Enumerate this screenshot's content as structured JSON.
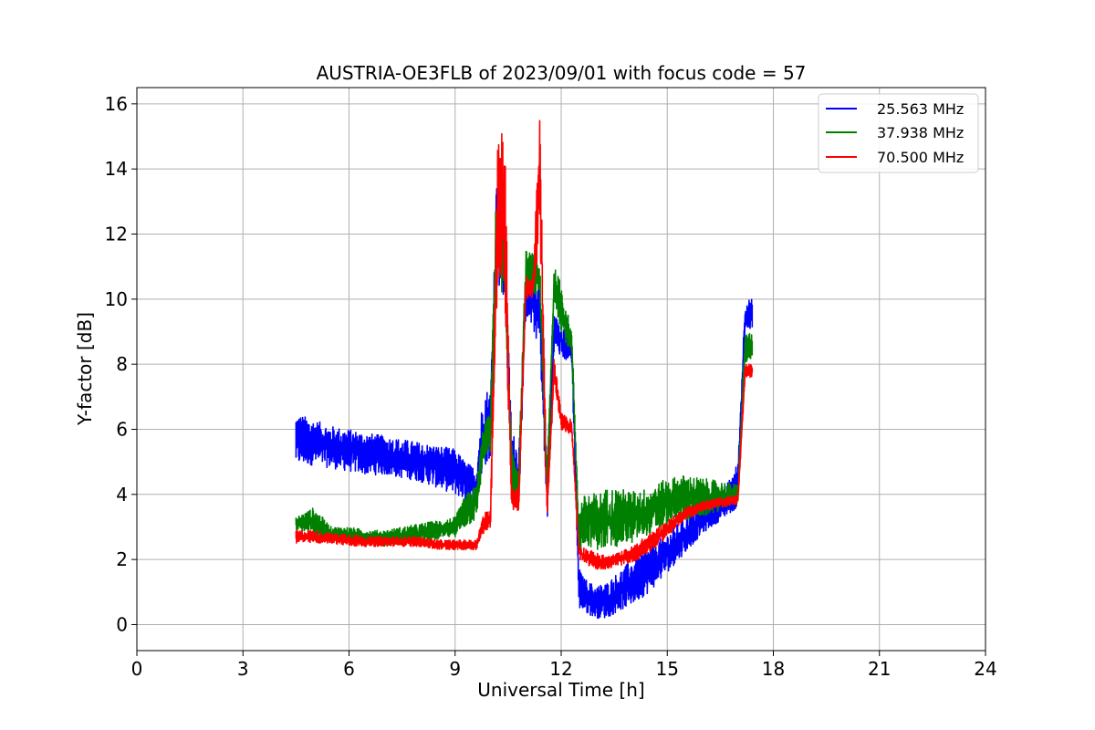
{
  "chart_data": {
    "type": "line",
    "title": "AUSTRIA-OE3FLB of 2023/09/01 with focus code = 57",
    "xlabel": "Universal Time [h]",
    "ylabel": "Y-factor [dB]",
    "xlim": [
      0,
      24
    ],
    "ylim": [
      -0.8,
      16.5
    ],
    "xticks": [
      0,
      3,
      6,
      9,
      12,
      15,
      18,
      21,
      24
    ],
    "yticks": [
      0,
      2,
      4,
      6,
      8,
      10,
      12,
      14,
      16
    ],
    "grid": true,
    "legend_position": "top-right",
    "series": [
      {
        "name": "25.563 MHz",
        "color": "#0000ff",
        "x": [
          4.5,
          5.0,
          5.5,
          6.0,
          6.5,
          7.0,
          7.5,
          8.0,
          8.5,
          9.0,
          9.3,
          9.6,
          9.8,
          10.0,
          10.2,
          10.4,
          10.6,
          10.8,
          11.0,
          11.2,
          11.4,
          11.6,
          11.8,
          12.0,
          12.3,
          12.5,
          12.6,
          12.8,
          13.0,
          13.3,
          13.6,
          14.0,
          14.5,
          15.0,
          15.5,
          16.0,
          16.5,
          17.0,
          17.2,
          17.4
        ],
        "low": [
          4.9,
          4.9,
          4.8,
          4.7,
          4.6,
          4.6,
          4.5,
          4.4,
          4.2,
          4.0,
          3.8,
          3.6,
          4.8,
          5.0,
          10.5,
          10.0,
          4.0,
          3.5,
          9.5,
          9.0,
          8.5,
          3.0,
          8.5,
          8.2,
          8.0,
          0.5,
          0.4,
          0.3,
          0.2,
          0.2,
          0.4,
          0.6,
          1.0,
          1.6,
          2.2,
          2.8,
          3.2,
          3.6,
          9.0,
          9.0
        ],
        "high": [
          6.5,
          6.3,
          6.1,
          6.0,
          5.9,
          5.8,
          5.7,
          5.6,
          5.5,
          5.4,
          5.0,
          4.8,
          7.3,
          7.2,
          15.0,
          12.0,
          6.0,
          5.5,
          10.8,
          11.0,
          10.6,
          5.0,
          9.5,
          9.3,
          9.0,
          1.8,
          1.5,
          1.3,
          1.2,
          1.3,
          1.6,
          2.0,
          2.4,
          2.8,
          3.3,
          3.7,
          3.9,
          5.0,
          10.0,
          10.0
        ]
      },
      {
        "name": "37.938 MHz",
        "color": "#008000",
        "x": [
          4.5,
          5.0,
          5.5,
          6.0,
          6.5,
          7.0,
          7.5,
          8.0,
          8.5,
          9.0,
          9.3,
          9.6,
          9.8,
          10.0,
          10.2,
          10.4,
          10.6,
          10.8,
          11.0,
          11.2,
          11.4,
          11.6,
          11.8,
          12.0,
          12.3,
          12.5,
          12.6,
          12.8,
          13.0,
          13.3,
          13.6,
          14.0,
          14.5,
          15.0,
          15.5,
          16.0,
          16.5,
          17.0,
          17.2,
          17.4
        ],
        "low": [
          2.9,
          2.7,
          2.6,
          2.5,
          2.5,
          2.4,
          2.5,
          2.5,
          2.6,
          2.7,
          3.0,
          3.2,
          5.0,
          5.2,
          10.5,
          10.0,
          4.0,
          3.5,
          10.0,
          10.2,
          9.8,
          3.5,
          10.0,
          9.0,
          8.2,
          2.0,
          2.5,
          2.4,
          2.3,
          2.3,
          2.4,
          2.5,
          2.8,
          3.0,
          3.2,
          3.3,
          3.5,
          3.8,
          8.0,
          8.2
        ],
        "high": [
          3.3,
          3.6,
          3.0,
          3.0,
          2.9,
          2.9,
          3.0,
          3.1,
          3.2,
          3.3,
          4.0,
          4.3,
          6.2,
          6.5,
          15.0,
          11.6,
          5.5,
          5.0,
          11.5,
          11.4,
          11.2,
          4.8,
          11.0,
          10.5,
          9.0,
          3.5,
          3.9,
          4.1,
          4.0,
          4.2,
          4.2,
          4.1,
          4.2,
          4.5,
          4.6,
          4.5,
          4.4,
          4.3,
          9.0,
          8.9
        ]
      },
      {
        "name": "70.500 MHz",
        "color": "#ff0000",
        "x": [
          4.5,
          5.0,
          5.5,
          6.0,
          6.5,
          7.0,
          7.5,
          8.0,
          8.5,
          9.0,
          9.3,
          9.6,
          9.8,
          10.0,
          10.2,
          10.4,
          10.6,
          10.8,
          11.0,
          11.2,
          11.4,
          11.6,
          11.8,
          12.0,
          12.3,
          12.5,
          12.6,
          12.8,
          13.0,
          13.3,
          13.6,
          14.0,
          14.5,
          15.0,
          15.5,
          16.0,
          16.5,
          17.0,
          17.2,
          17.4
        ],
        "low": [
          2.5,
          2.5,
          2.5,
          2.4,
          2.4,
          2.4,
          2.4,
          2.4,
          2.3,
          2.3,
          2.3,
          2.3,
          2.8,
          3.0,
          10.0,
          10.0,
          3.5,
          3.5,
          10.0,
          10.0,
          12.0,
          3.2,
          7.5,
          6.0,
          5.8,
          2.0,
          1.9,
          1.8,
          1.7,
          1.7,
          1.8,
          1.9,
          2.2,
          2.7,
          3.2,
          3.5,
          3.6,
          3.7,
          7.6,
          7.6
        ],
        "high": [
          2.9,
          2.9,
          2.8,
          2.8,
          2.7,
          2.7,
          2.7,
          2.7,
          2.6,
          2.6,
          2.6,
          2.6,
          3.4,
          3.6,
          15.6,
          15.5,
          4.2,
          4.2,
          10.7,
          10.7,
          15.7,
          3.8,
          8.3,
          6.5,
          6.3,
          2.5,
          2.4,
          2.3,
          2.2,
          2.1,
          2.2,
          2.4,
          2.8,
          3.2,
          3.6,
          3.8,
          3.9,
          4.0,
          8.0,
          8.0
        ]
      }
    ]
  }
}
